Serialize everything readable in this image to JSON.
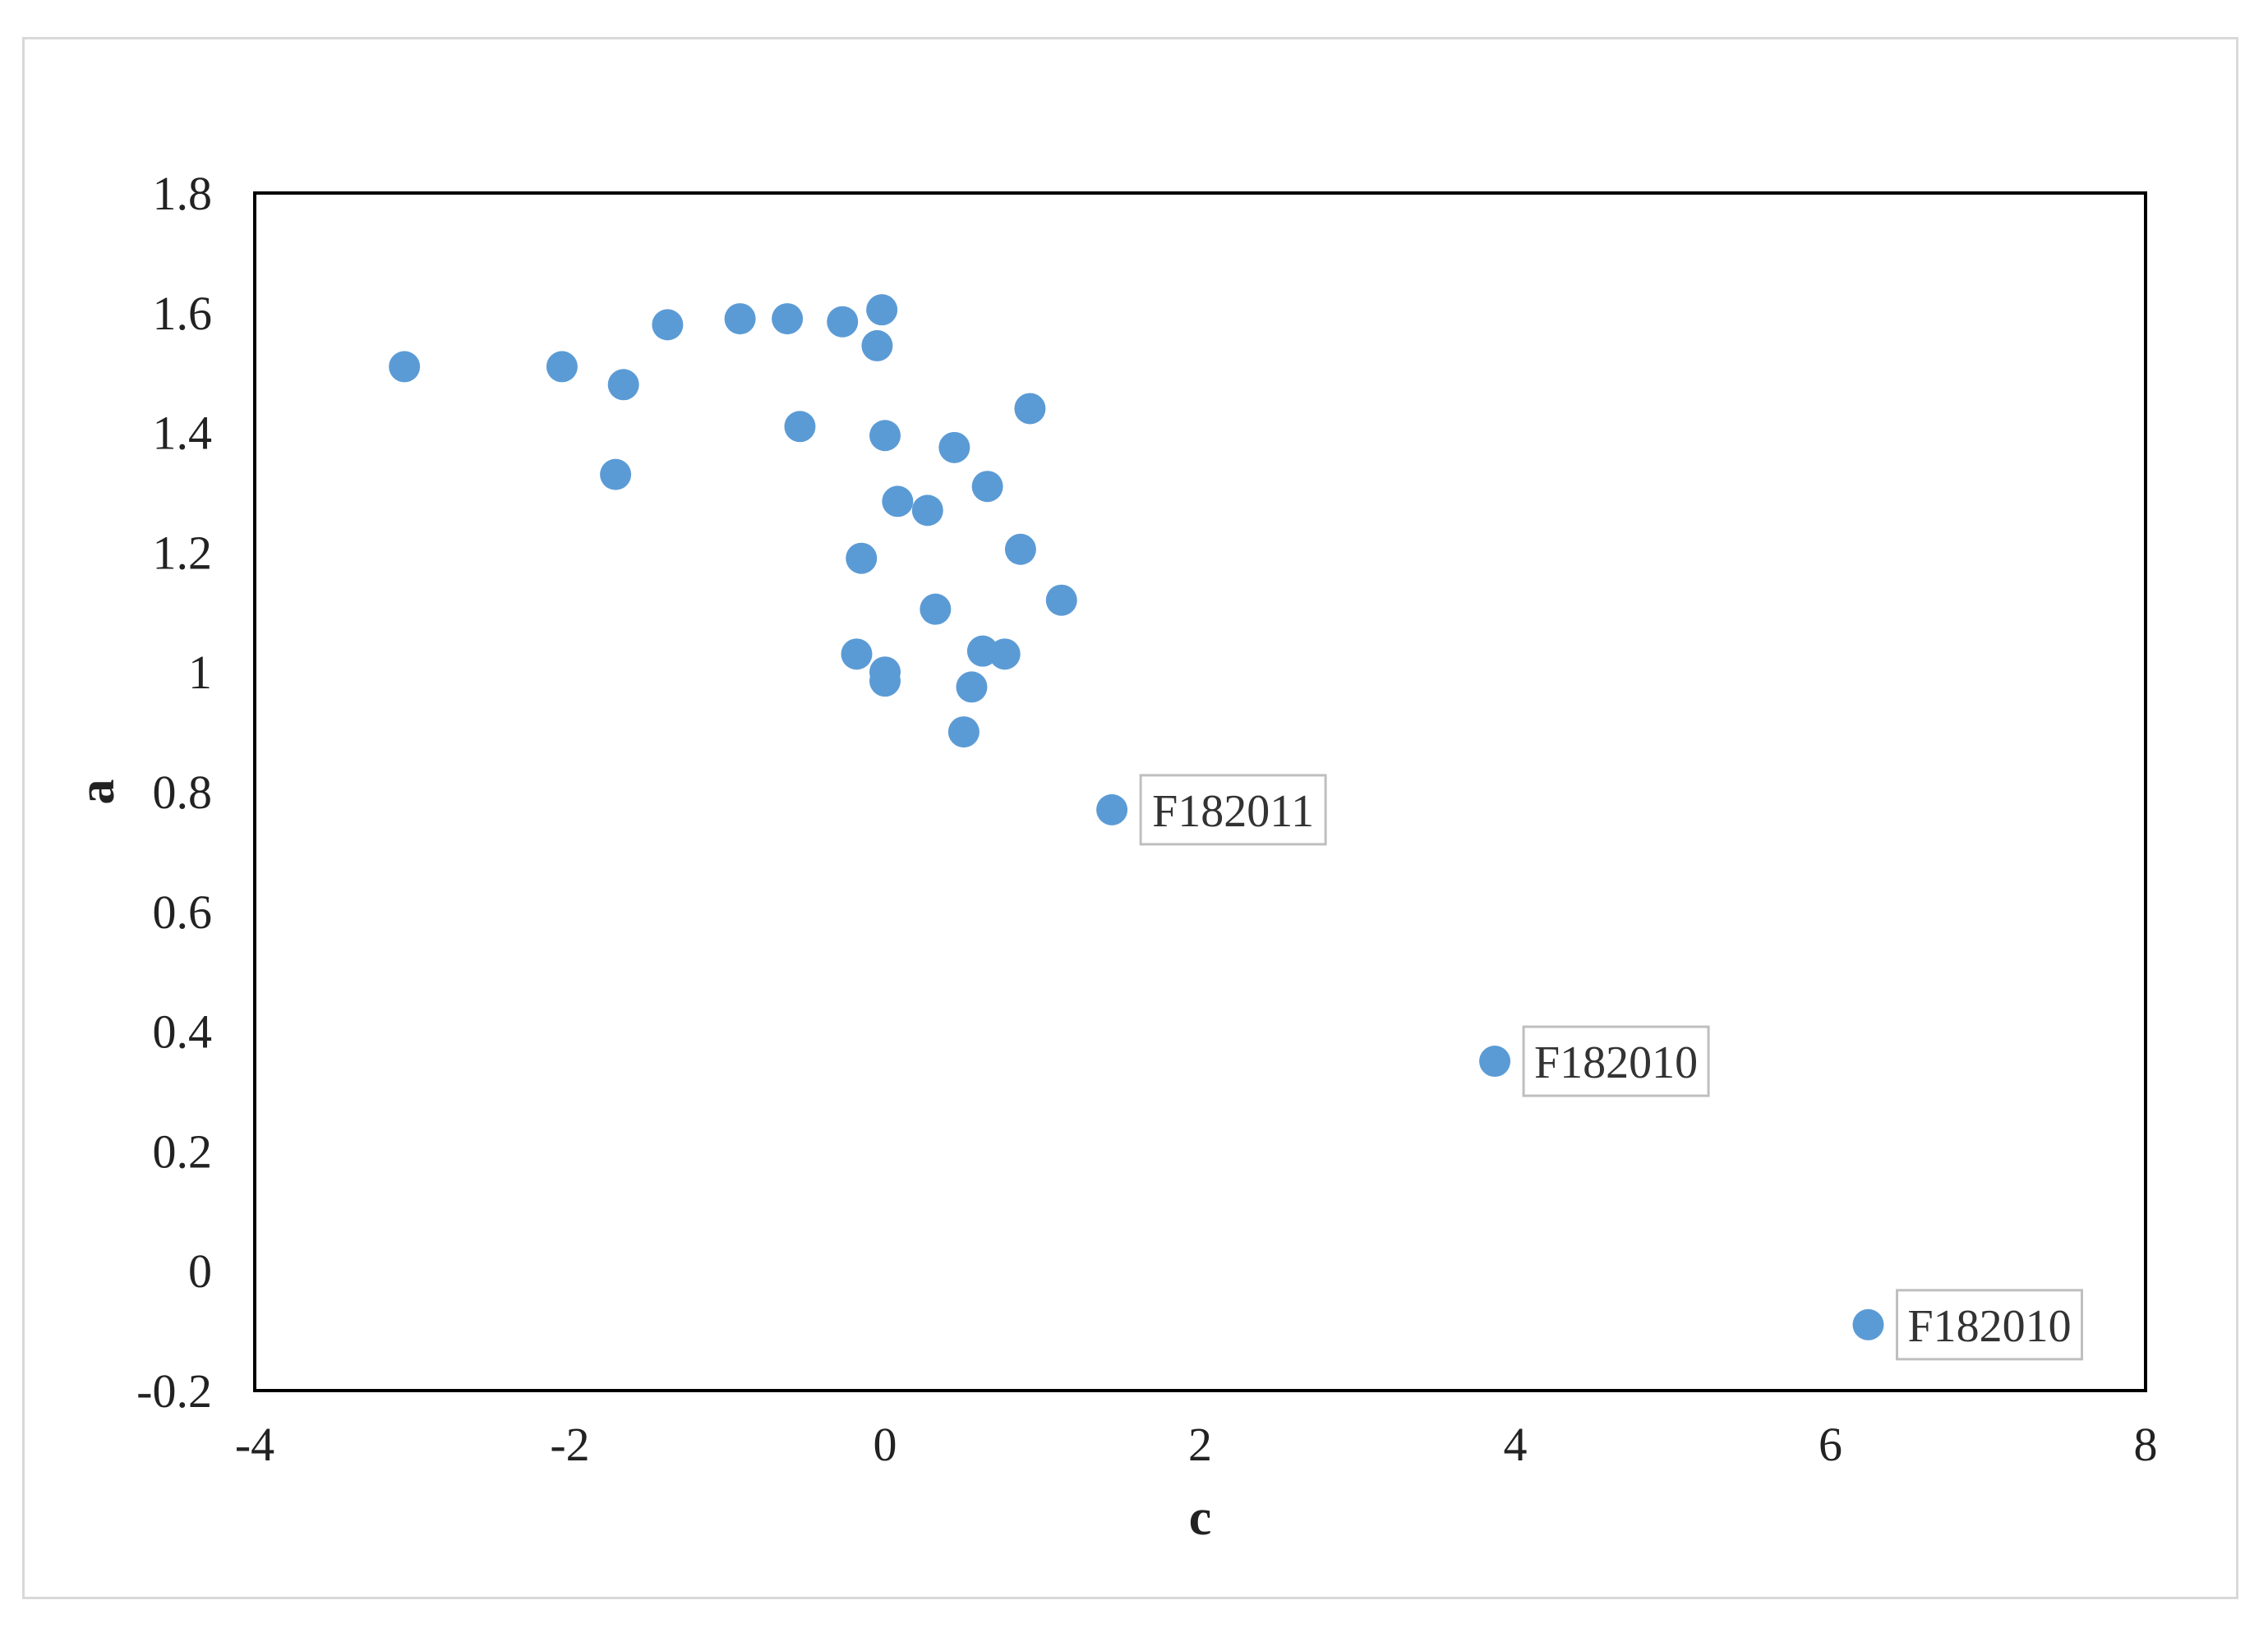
{
  "chart_data": {
    "type": "scatter",
    "title": "",
    "xlabel": "c",
    "ylabel": "a",
    "xlim": [
      -4,
      8
    ],
    "ylim": [
      -0.2,
      1.8
    ],
    "x_ticks": [
      "-4",
      "-2",
      "0",
      "2",
      "4",
      "6",
      "8"
    ],
    "y_ticks": [
      "-0.2",
      "0",
      "0.2",
      "0.4",
      "0.6",
      "0.8",
      "1",
      "1.2",
      "1.4",
      "1.6",
      "1.8"
    ],
    "grid": false,
    "legend": "none",
    "marker_color": "#5b9bd5",
    "points": [
      {
        "x": -3.05,
        "y": 1.51,
        "label": ""
      },
      {
        "x": -2.05,
        "y": 1.51,
        "label": ""
      },
      {
        "x": -1.66,
        "y": 1.48,
        "label": ""
      },
      {
        "x": -1.71,
        "y": 1.33,
        "label": ""
      },
      {
        "x": -1.38,
        "y": 1.58,
        "label": ""
      },
      {
        "x": -0.92,
        "y": 1.59,
        "label": ""
      },
      {
        "x": -0.62,
        "y": 1.59,
        "label": ""
      },
      {
        "x": -0.54,
        "y": 1.41,
        "label": ""
      },
      {
        "x": -0.27,
        "y": 1.585,
        "label": ""
      },
      {
        "x": -0.02,
        "y": 1.605,
        "label": ""
      },
      {
        "x": -0.05,
        "y": 1.545,
        "label": ""
      },
      {
        "x": 0.0,
        "y": 1.395,
        "label": ""
      },
      {
        "x": 0.44,
        "y": 1.375,
        "label": ""
      },
      {
        "x": 0.92,
        "y": 1.44,
        "label": ""
      },
      {
        "x": 0.08,
        "y": 1.285,
        "label": ""
      },
      {
        "x": 0.27,
        "y": 1.27,
        "label": ""
      },
      {
        "x": 0.65,
        "y": 1.31,
        "label": ""
      },
      {
        "x": -0.15,
        "y": 1.19,
        "label": ""
      },
      {
        "x": 0.86,
        "y": 1.205,
        "label": ""
      },
      {
        "x": 0.32,
        "y": 1.105,
        "label": ""
      },
      {
        "x": 1.12,
        "y": 1.12,
        "label": ""
      },
      {
        "x": -0.18,
        "y": 1.03,
        "label": ""
      },
      {
        "x": 0.0,
        "y": 1.0,
        "label": ""
      },
      {
        "x": 0.0,
        "y": 0.985,
        "label": ""
      },
      {
        "x": 0.62,
        "y": 1.035,
        "label": ""
      },
      {
        "x": 0.76,
        "y": 1.03,
        "label": ""
      },
      {
        "x": 0.55,
        "y": 0.975,
        "label": ""
      },
      {
        "x": 0.5,
        "y": 0.9,
        "label": ""
      },
      {
        "x": 1.44,
        "y": 0.77,
        "label": "F182011"
      },
      {
        "x": 3.87,
        "y": 0.35,
        "label": "F182010"
      },
      {
        "x": 6.24,
        "y": -0.09,
        "label": "F182010"
      }
    ]
  }
}
